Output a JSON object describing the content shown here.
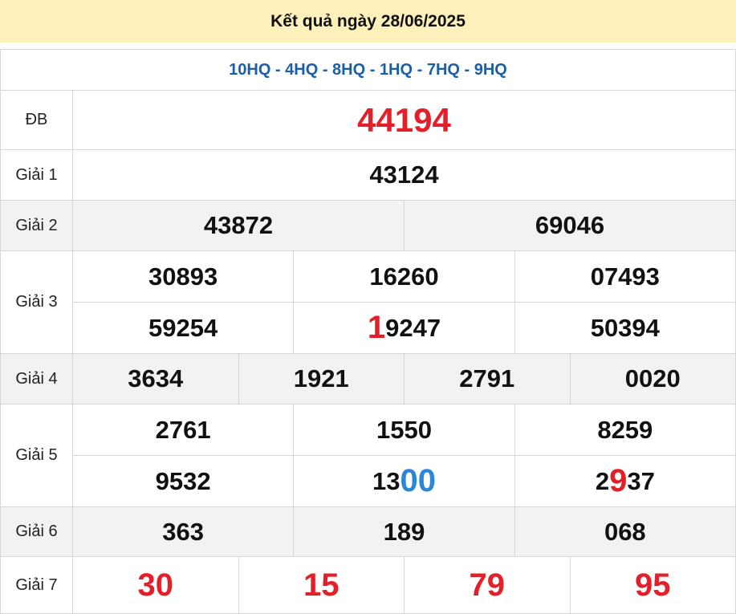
{
  "header": {
    "title": "Kết quả ngày 28/06/2025"
  },
  "codes": "10HQ - 4HQ - 8HQ - 1HQ - 7HQ - 9HQ",
  "colors": {
    "header_bg": "#fdf0bb",
    "codes": "#1a5fa8",
    "red": "#e3202a",
    "blue": "#2b86d8",
    "alt_row": "#f2f2f2"
  },
  "prizes": [
    {
      "label": "ĐB",
      "style": "big",
      "lines": [
        [
          [
            {
              "t": "44194"
            }
          ]
        ]
      ]
    },
    {
      "label": "Giải 1",
      "lines": [
        [
          [
            {
              "t": "43124"
            }
          ]
        ]
      ]
    },
    {
      "label": "Giải 2",
      "gray": true,
      "lines": [
        [
          [
            {
              "t": "43872"
            }
          ],
          [
            {
              "t": "69046"
            }
          ]
        ]
      ]
    },
    {
      "label": "Giải 3",
      "lines": [
        [
          [
            {
              "t": "30893"
            }
          ],
          [
            {
              "t": "16260"
            }
          ],
          [
            {
              "t": "07493"
            }
          ]
        ],
        [
          [
            {
              "t": "59254"
            }
          ],
          [
            {
              "t": "1",
              "c": "red"
            },
            {
              "t": "9247"
            }
          ],
          [
            {
              "t": "50394"
            }
          ]
        ]
      ]
    },
    {
      "label": "Giải 4",
      "gray": true,
      "lines": [
        [
          [
            {
              "t": "3634"
            }
          ],
          [
            {
              "t": "1921"
            }
          ],
          [
            {
              "t": "2791"
            }
          ],
          [
            {
              "t": "0020"
            }
          ]
        ]
      ]
    },
    {
      "label": "Giải 5",
      "lines": [
        [
          [
            {
              "t": "2761"
            }
          ],
          [
            {
              "t": "1550"
            }
          ],
          [
            {
              "t": "8259"
            }
          ]
        ],
        [
          [
            {
              "t": "9532"
            }
          ],
          [
            {
              "t": "13"
            },
            {
              "t": "00",
              "c": "blue"
            }
          ],
          [
            {
              "t": "2"
            },
            {
              "t": "9",
              "c": "red"
            },
            {
              "t": "37"
            }
          ]
        ]
      ]
    },
    {
      "label": "Giải 6",
      "gray": true,
      "lines": [
        [
          [
            {
              "t": "363"
            }
          ],
          [
            {
              "t": "189"
            }
          ],
          [
            {
              "t": "068"
            }
          ]
        ]
      ]
    },
    {
      "label": "Giải 7",
      "style": "g7",
      "lines": [
        [
          [
            {
              "t": "30"
            }
          ],
          [
            {
              "t": "15"
            }
          ],
          [
            {
              "t": "79"
            }
          ],
          [
            {
              "t": "95"
            }
          ]
        ]
      ]
    }
  ]
}
